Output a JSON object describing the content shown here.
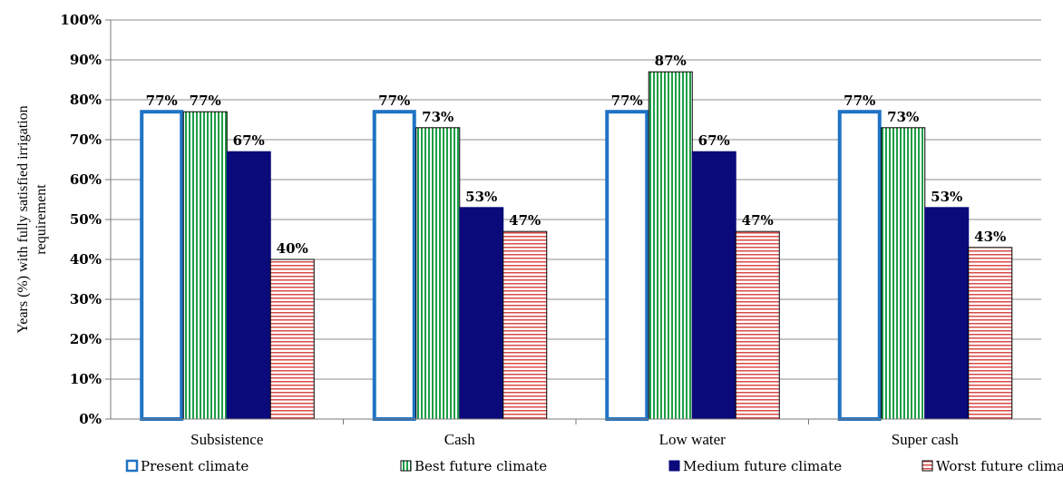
{
  "chart_data": {
    "type": "bar",
    "ylabel_lines": [
      "Years (%) with fully satisfied irrigation",
      "requirement"
    ],
    "ylim": [
      0,
      100
    ],
    "y_ticks": [
      "0%",
      "10%",
      "20%",
      "30%",
      "40%",
      "50%",
      "60%",
      "70%",
      "80%",
      "90%",
      "100%"
    ],
    "grid": true,
    "legend_position": "bottom",
    "categories": [
      "Subsistence",
      "Cash",
      "Low water",
      "Super cash"
    ],
    "series": [
      {
        "name": "Present climate",
        "values": [
          77,
          77,
          77,
          77
        ],
        "labels": [
          "77%",
          "77%",
          "77%",
          "77%"
        ],
        "style": "outline",
        "color": "#1F73C4"
      },
      {
        "name": "Best future climate",
        "values": [
          77,
          73,
          87,
          73
        ],
        "labels": [
          "77%",
          "73%",
          "87%",
          "73%"
        ],
        "style": "vertical-stripes",
        "color": "#1E9E46"
      },
      {
        "name": "Medium future climate",
        "values": [
          67,
          53,
          67,
          53
        ],
        "labels": [
          "67%",
          "53%",
          "67%",
          "53%"
        ],
        "style": "solid",
        "color": "#0A0A7A"
      },
      {
        "name": "Worst future climate",
        "values": [
          40,
          47,
          47,
          43
        ],
        "labels": [
          "40%",
          "47%",
          "47%",
          "43%"
        ],
        "style": "horizontal-stripes",
        "color": "#D84A4A"
      }
    ]
  }
}
